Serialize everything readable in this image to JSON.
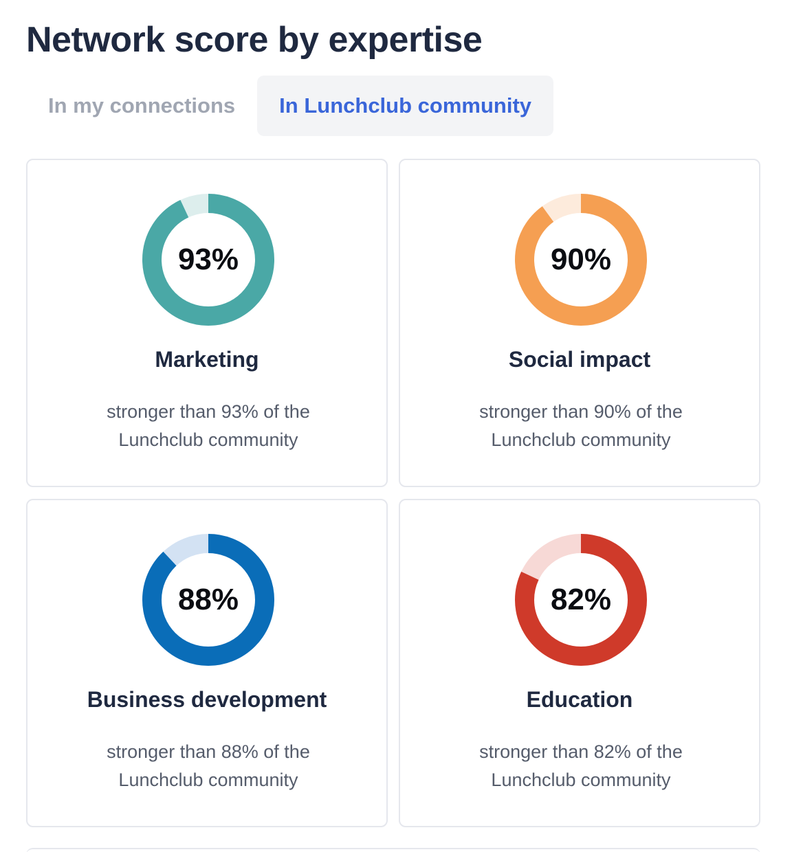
{
  "page": {
    "title": "Network score by expertise"
  },
  "tabs": [
    {
      "label": "In my connections",
      "active": false
    },
    {
      "label": "In Lunchclub community",
      "active": true
    }
  ],
  "cards": [
    {
      "score_label": "93%",
      "score": 93,
      "title": "Marketing",
      "desc_line1": "stronger than 93% of the",
      "desc_line2": "Lunchclub community",
      "color": "#4aa8a6",
      "track_color": "#ddeeed"
    },
    {
      "score_label": "90%",
      "score": 90,
      "title": "Social impact",
      "desc_line1": "stronger than 90% of the",
      "desc_line2": "Lunchclub community",
      "color": "#f59f52",
      "track_color": "#fdebdc"
    },
    {
      "score_label": "88%",
      "score": 88,
      "title": "Business development",
      "desc_line1": "stronger than 88% of the",
      "desc_line2": "Lunchclub community",
      "color": "#0a6db8",
      "track_color": "#d3e2f3"
    },
    {
      "score_label": "82%",
      "score": 82,
      "title": "Education",
      "desc_line1": "stronger than 82% of the",
      "desc_line2": "Lunchclub community",
      "color": "#cf3a2a",
      "track_color": "#f7d9d6"
    }
  ]
}
